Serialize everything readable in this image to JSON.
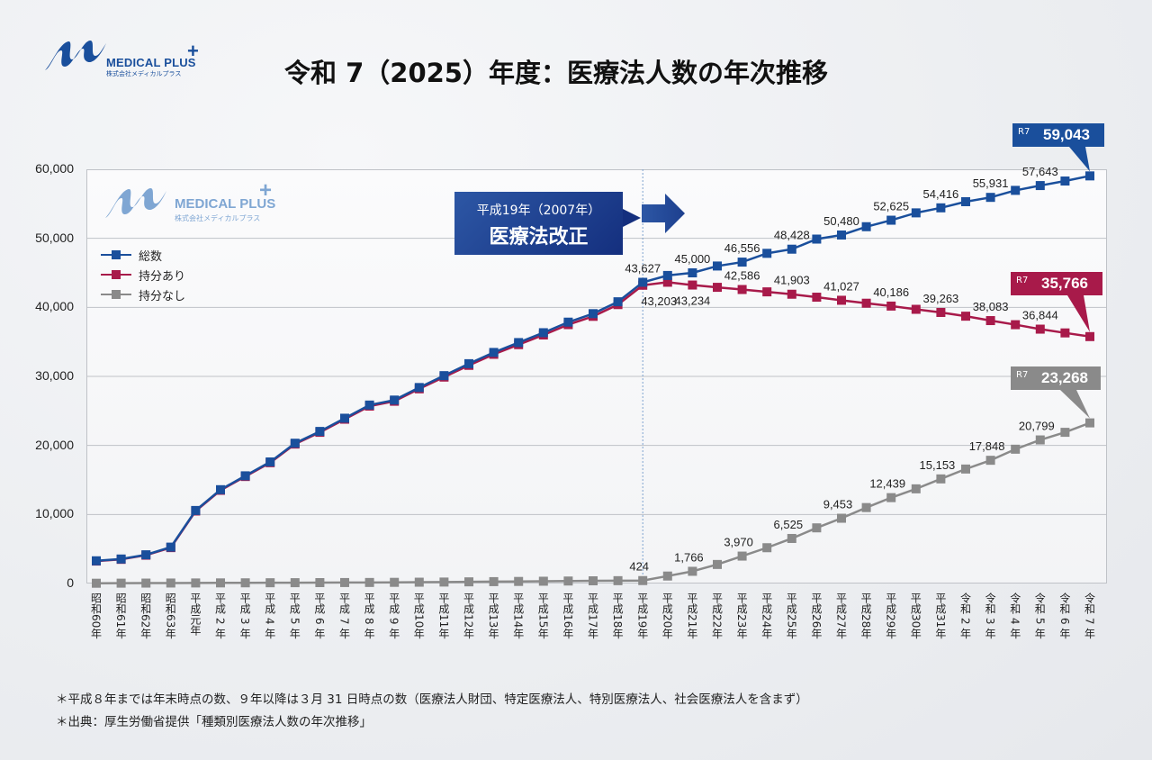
{
  "logo": {
    "name": "MEDICAL PLUS",
    "plus": "+",
    "sub": "株式会社メディカルプラス"
  },
  "title": "令和 7（2025）年度：医療法人数の年次推移",
  "annotation": {
    "line1": "平成19年（2007年）",
    "line2": "医療法改正"
  },
  "callouts": [
    {
      "tag": "R7",
      "value": "59,043",
      "color": "#1a4f9c"
    },
    {
      "tag": "R7",
      "value": "35,766",
      "color": "#a81a4a"
    },
    {
      "tag": "R7",
      "value": "23,268",
      "color": "#8a8a8a"
    }
  ],
  "footnotes": [
    "＊平成８年までは年末時点の数、９年以降は３月 31 日時点の数（医療法人財団、特定医療法人、特別医療法人、社会医療法人を含まず）",
    "＊出典：厚生労働省提供「種類別医療法人数の年次推移」"
  ],
  "chart_data": {
    "type": "line",
    "title": "令和 7（2025）年度：医療法人数の年次推移",
    "xlabel": "",
    "ylabel": "",
    "ylim": [
      0,
      60000
    ],
    "yticks": [
      "0",
      "10,000",
      "20,000",
      "30,000",
      "40,000",
      "50,000",
      "60,000"
    ],
    "grid": true,
    "legend_position": "top-left",
    "categories": [
      "昭和60年",
      "昭和61年",
      "昭和62年",
      "昭和63年",
      "平成元年",
      "平成 2 年",
      "平成 3 年",
      "平成 4 年",
      "平成 5 年",
      "平成 6 年",
      "平成 7 年",
      "平成 8 年",
      "平成 9 年",
      "平成10年",
      "平成11年",
      "平成12年",
      "平成13年",
      "平成14年",
      "平成15年",
      "平成16年",
      "平成17年",
      "平成18年",
      "平成19年",
      "平成20年",
      "平成21年",
      "平成22年",
      "平成23年",
      "平成24年",
      "平成25年",
      "平成26年",
      "平成27年",
      "平成28年",
      "平成29年",
      "平成30年",
      "平成31年",
      "令和 2 年",
      "令和 3 年",
      "令和 4 年",
      "令和 5 年",
      "令和 6 年",
      "令和 7 年"
    ],
    "marker_line_category": "平成19年",
    "series": [
      {
        "name": "総数",
        "color": "#1a4f9c",
        "label_indices": [
          22,
          24,
          26,
          28,
          30,
          32,
          34,
          36,
          38
        ],
        "values": [
          3290,
          3550,
          4160,
          5270,
          10580,
          13590,
          15600,
          17610,
          20320,
          22030,
          23940,
          25850,
          26570,
          28390,
          30110,
          31840,
          33470,
          34900,
          36330,
          37860,
          39090,
          40810,
          43627,
          44620,
          45000,
          45989,
          46556,
          47825,
          48428,
          49889,
          50480,
          51683,
          52625,
          53689,
          54416,
          55305,
          55931,
          56945,
          57643,
          58300,
          59043
        ]
      },
      {
        "name": "持分あり",
        "color": "#a81a4a",
        "label_indices": [
          22,
          24,
          26,
          28,
          30,
          32,
          34,
          36,
          38
        ],
        "values": [
          3250,
          3500,
          4100,
          5200,
          10500,
          13500,
          15500,
          17500,
          20200,
          21900,
          23800,
          25700,
          26400,
          28200,
          29900,
          31600,
          33200,
          34600,
          36000,
          37500,
          38700,
          40400,
          43203,
          43638,
          43234,
          42902,
          42586,
          42245,
          41903,
          41474,
          41027,
          40601,
          40186,
          39716,
          39263,
          38721,
          38083,
          37490,
          36844,
          36300,
          35766
        ]
      },
      {
        "name": "持分なし",
        "color": "#8a8a8a",
        "label_indices": [
          22,
          24,
          26,
          28,
          30,
          32,
          34,
          36,
          38
        ],
        "values": [
          40,
          50,
          60,
          70,
          80,
          90,
          100,
          110,
          120,
          130,
          140,
          150,
          170,
          190,
          210,
          240,
          270,
          300,
          330,
          360,
          390,
          410,
          424,
          1082,
          1766,
          2758,
          3970,
          5184,
          6525,
          8061,
          9453,
          11000,
          12439,
          13713,
          15153,
          16583,
          17848,
          19455,
          20799,
          21900,
          23268
        ]
      }
    ]
  }
}
